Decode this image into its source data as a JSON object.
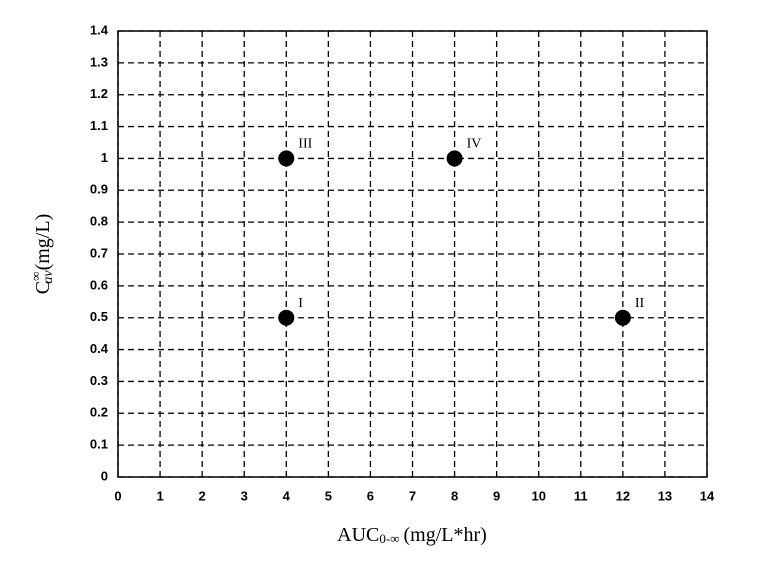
{
  "chart_data": {
    "type": "scatter",
    "x": [
      4,
      12,
      4,
      8
    ],
    "values": [
      0.5,
      0.5,
      1,
      1
    ],
    "labels": [
      "I",
      "II",
      "III",
      "IV"
    ],
    "color": "#000000",
    "xlabel": {
      "base": "AUC",
      "sub": "0-∞",
      "unit": "(mg/L*hr)"
    },
    "ylabel": {
      "base": "C",
      "sup": "∞",
      "sub": "av",
      "unit": "(mg/L)"
    },
    "xlim": [
      0,
      14
    ],
    "xticks": [
      0,
      1,
      2,
      3,
      4,
      5,
      6,
      7,
      8,
      9,
      10,
      11,
      12,
      13,
      14
    ],
    "ylim": [
      0,
      1.4
    ],
    "yticks": [
      0,
      0.1,
      0.2,
      0.3,
      0.4,
      0.5,
      0.6,
      0.7,
      0.8,
      0.9,
      1,
      1.1,
      1.2,
      1.3,
      1.4
    ],
    "grid": true
  }
}
